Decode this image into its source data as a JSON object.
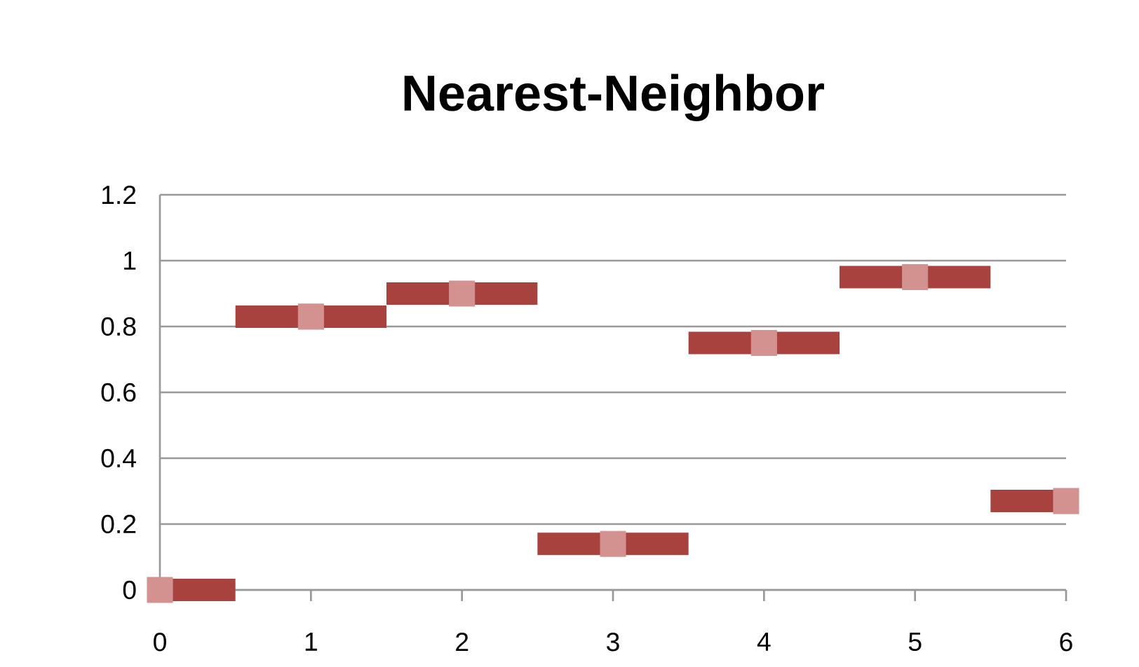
{
  "chart_data": {
    "type": "scatter",
    "title": "Nearest-Neighbor",
    "x": [
      0,
      1,
      2,
      3,
      4,
      5,
      6
    ],
    "series": [
      {
        "color": "#a8423f",
        "colors": [
          "#d39290",
          "#d39290",
          "#d39290",
          "#d39290",
          "#d39290",
          "#d39290",
          "#d39290"
        ],
        "values": [
          0,
          0.83,
          0.9,
          0.14,
          0.75,
          0.95,
          0.27
        ],
        "xerrors": [
          [
            0,
            0.5
          ],
          [
            0.5,
            1.5
          ],
          [
            1.5,
            2.5
          ],
          [
            2.5,
            3.5
          ],
          [
            3.5,
            4.5
          ],
          [
            4.5,
            5.5
          ],
          [
            5.5,
            6
          ]
        ]
      }
    ],
    "xlim": [
      0,
      6
    ],
    "xticks": [
      0,
      1,
      2,
      3,
      4,
      5,
      6
    ],
    "ylim": [
      0,
      1.2
    ],
    "yticks": [
      0,
      0.2,
      0.4,
      0.6,
      0.8,
      1,
      1.2
    ],
    "grid": "y",
    "marker": "square"
  }
}
